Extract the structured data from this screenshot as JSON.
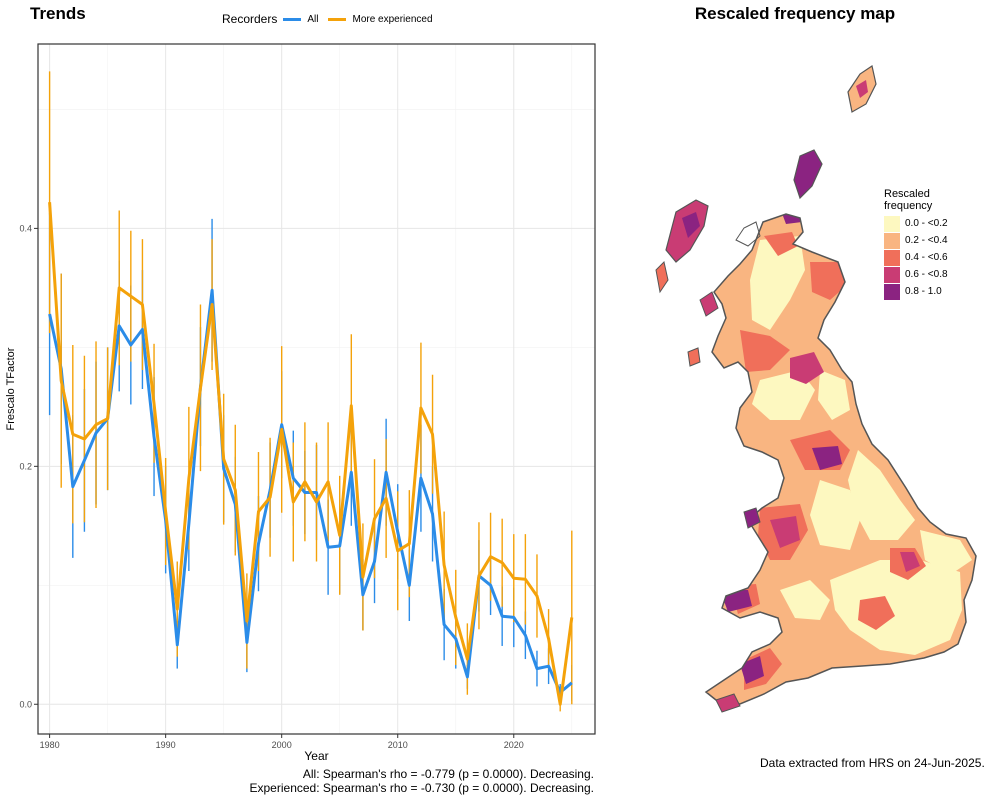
{
  "left_title": "Trends",
  "right_title": "Rescaled frequency map",
  "legend": {
    "title": "Recorders",
    "items": [
      {
        "label": "All",
        "color": "#2b8ce8"
      },
      {
        "label": "More experienced",
        "color": "#f4a20a"
      }
    ]
  },
  "captions": {
    "all": "All: Spearman's rho = -0.779 (p = 0.0000). Decreasing.",
    "experienced": "Experienced: Spearman's rho = -0.730 (p = 0.0000). Decreasing."
  },
  "map": {
    "legend_title_line1": "Rescaled",
    "legend_title_line2": "frequency",
    "bins": [
      {
        "label": "0.0 - <0.2",
        "color": "#fdf8c0"
      },
      {
        "label": "0.2 - <0.4",
        "color": "#f9b581"
      },
      {
        "label": "0.4 - <0.6",
        "color": "#f06f5a"
      },
      {
        "label": "0.6 - <0.8",
        "color": "#c93c74"
      },
      {
        "label": "0.8 - 1.0",
        "color": "#8b2381"
      }
    ],
    "footer": "Data extracted from HRS on 24-Jun-2025."
  },
  "chart_data": {
    "type": "line",
    "xlabel": "Year",
    "ylabel": "Frescalo TFactor",
    "xlim": [
      1979,
      2027
    ],
    "ylim": [
      -0.025,
      0.555
    ],
    "xticks": [
      1980,
      1990,
      2000,
      2010,
      2020
    ],
    "yticks": [
      0.0,
      0.2,
      0.4
    ],
    "ytick_labels": [
      "0.0",
      "0.2",
      "0.4"
    ],
    "grid": true,
    "legend_position": "top",
    "x": [
      1980,
      1981,
      1982,
      1983,
      1984,
      1985,
      1986,
      1987,
      1988,
      1989,
      1990,
      1991,
      1992,
      1993,
      1994,
      1995,
      1996,
      1997,
      1998,
      1999,
      2000,
      2001,
      2002,
      2003,
      2004,
      2005,
      2006,
      2007,
      2008,
      2009,
      2010,
      2011,
      2012,
      2013,
      2014,
      2015,
      2016,
      2017,
      2018,
      2019,
      2020,
      2021,
      2022,
      2023,
      2024,
      2025
    ],
    "series": [
      {
        "name": "All",
        "color": "#2b8ce8",
        "values": [
          0.328,
          0.282,
          0.183,
          0.205,
          0.228,
          0.24,
          0.318,
          0.302,
          0.315,
          0.225,
          0.155,
          0.05,
          0.152,
          0.267,
          0.348,
          0.198,
          0.168,
          0.052,
          0.135,
          0.18,
          0.235,
          0.19,
          0.178,
          0.178,
          0.132,
          0.133,
          0.195,
          0.092,
          0.12,
          0.195,
          0.145,
          0.1,
          0.19,
          0.16,
          0.067,
          0.055,
          0.023,
          0.108,
          0.1,
          0.074,
          0.073,
          0.058,
          0.03,
          0.032,
          0.01,
          0.018
        ],
        "err": [
          0.085,
          0.08,
          0.06,
          0.06,
          0.06,
          0.06,
          0.055,
          0.05,
          0.05,
          0.05,
          0.045,
          0.02,
          0.04,
          0.05,
          0.06,
          0.045,
          0.04,
          0.025,
          0.04,
          0.04,
          0.045,
          0.04,
          0.035,
          0.04,
          0.04,
          0.04,
          0.045,
          0.03,
          0.035,
          0.045,
          0.04,
          0.03,
          0.045,
          0.04,
          0.03,
          0.025,
          0.01,
          0.03,
          0.025,
          0.025,
          0.025,
          0.02,
          0.015,
          0.015,
          0.007,
          0.015
        ]
      },
      {
        "name": "More experienced",
        "color": "#f4a20a",
        "values": [
          0.422,
          0.272,
          0.227,
          0.223,
          0.235,
          0.24,
          0.35,
          0.343,
          0.336,
          0.253,
          0.162,
          0.08,
          0.19,
          0.266,
          0.336,
          0.206,
          0.18,
          0.07,
          0.162,
          0.174,
          0.231,
          0.17,
          0.187,
          0.17,
          0.187,
          0.142,
          0.251,
          0.107,
          0.156,
          0.173,
          0.129,
          0.135,
          0.249,
          0.227,
          0.117,
          0.073,
          0.038,
          0.108,
          0.124,
          0.119,
          0.106,
          0.105,
          0.091,
          0.055,
          0.0,
          0.073
        ],
        "err": [
          0.11,
          0.09,
          0.075,
          0.07,
          0.07,
          0.06,
          0.065,
          0.055,
          0.055,
          0.05,
          0.045,
          0.04,
          0.06,
          0.07,
          0.055,
          0.055,
          0.055,
          0.04,
          0.05,
          0.05,
          0.07,
          0.05,
          0.05,
          0.05,
          0.05,
          0.05,
          0.06,
          0.045,
          0.05,
          0.05,
          0.05,
          0.045,
          0.055,
          0.05,
          0.045,
          0.04,
          0.03,
          0.045,
          0.037,
          0.037,
          0.037,
          0.038,
          0.035,
          0.025,
          0.006,
          0.073
        ]
      }
    ]
  }
}
